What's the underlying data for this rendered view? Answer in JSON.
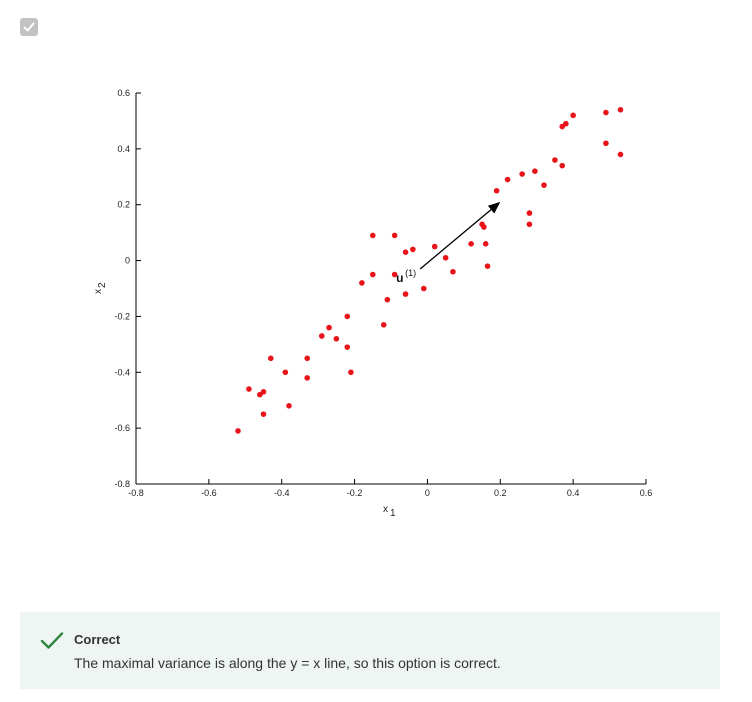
{
  "checkbox": {
    "state": "checked",
    "icon": "check-icon"
  },
  "chart_data": {
    "type": "scatter",
    "title": "",
    "xlabel": "x",
    "xlabel_sub": "1",
    "ylabel": "x",
    "ylabel_sub": "2",
    "xlim": [
      -0.8,
      0.6
    ],
    "ylim": [
      -0.8,
      0.6
    ],
    "x_ticks": [
      -0.8,
      -0.6,
      -0.4,
      -0.2,
      0,
      0.2,
      0.4,
      0.6
    ],
    "y_ticks": [
      -0.8,
      -0.6,
      -0.4,
      -0.2,
      0,
      0.2,
      0.4,
      0.6
    ],
    "x_tick_labels": [
      "-0.8",
      "-0.6",
      "-0.4",
      "-0.2",
      "0",
      "0.2",
      "0.4",
      "0.6"
    ],
    "y_tick_labels": [
      "-0.8",
      "-0.6",
      "-0.4",
      "-0.2",
      "0",
      "0.2",
      "0.4",
      "0.6"
    ],
    "grid": false,
    "point_color": "#e8141a",
    "points": [
      [
        -0.52,
        -0.61
      ],
      [
        -0.49,
        -0.46
      ],
      [
        -0.46,
        -0.48
      ],
      [
        -0.45,
        -0.47
      ],
      [
        -0.45,
        -0.55
      ],
      [
        -0.43,
        -0.35
      ],
      [
        -0.39,
        -0.4
      ],
      [
        -0.38,
        -0.52
      ],
      [
        -0.33,
        -0.35
      ],
      [
        -0.33,
        -0.42
      ],
      [
        -0.29,
        -0.27
      ],
      [
        -0.27,
        -0.24
      ],
      [
        -0.25,
        -0.28
      ],
      [
        -0.22,
        -0.2
      ],
      [
        -0.22,
        -0.31
      ],
      [
        -0.21,
        -0.4
      ],
      [
        -0.18,
        -0.08
      ],
      [
        -0.15,
        -0.05
      ],
      [
        -0.15,
        0.09
      ],
      [
        -0.12,
        -0.23
      ],
      [
        -0.11,
        -0.14
      ],
      [
        -0.09,
        0.09
      ],
      [
        -0.09,
        -0.05
      ],
      [
        -0.06,
        -0.12
      ],
      [
        -0.06,
        0.03
      ],
      [
        -0.04,
        0.04
      ],
      [
        -0.01,
        -0.1
      ],
      [
        0.02,
        0.05
      ],
      [
        0.05,
        0.01
      ],
      [
        0.07,
        -0.04
      ],
      [
        0.12,
        0.06
      ],
      [
        0.15,
        0.13
      ],
      [
        0.155,
        0.12
      ],
      [
        0.16,
        0.06
      ],
      [
        0.165,
        -0.02
      ],
      [
        0.19,
        0.25
      ],
      [
        0.22,
        0.29
      ],
      [
        0.26,
        0.31
      ],
      [
        0.28,
        0.17
      ],
      [
        0.28,
        0.13
      ],
      [
        0.295,
        0.32
      ],
      [
        0.32,
        0.27
      ],
      [
        0.35,
        0.36
      ],
      [
        0.37,
        0.34
      ],
      [
        0.37,
        0.48
      ],
      [
        0.38,
        0.49
      ],
      [
        0.4,
        0.52
      ],
      [
        0.49,
        0.53
      ],
      [
        0.49,
        0.42
      ],
      [
        0.53,
        0.54
      ],
      [
        0.53,
        0.38
      ]
    ],
    "arrow": {
      "from": [
        -0.02,
        -0.03
      ],
      "to": [
        0.2,
        0.21
      ],
      "label": "u",
      "label_sup": "(1)"
    }
  },
  "feedback": {
    "icon": "checkmark-icon",
    "status": "Correct",
    "message": "The maximal variance is along the y = x line, so this option is correct.",
    "background": "#eef5f2",
    "accent": "#2e8540"
  }
}
